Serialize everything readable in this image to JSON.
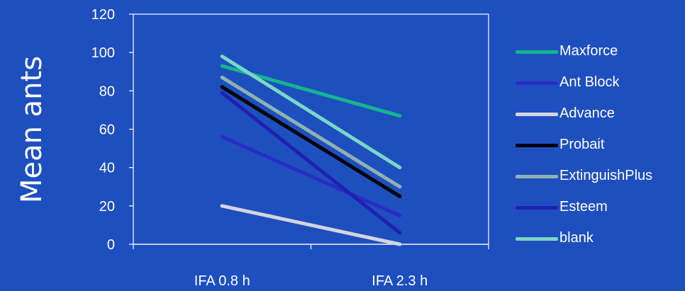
{
  "chart_data": {
    "type": "line",
    "title": "",
    "xlabel": "",
    "ylabel": "Mean ants",
    "categories": [
      "IFA 0.8 h",
      "IFA 2.3 h"
    ],
    "ylim": [
      0,
      120
    ],
    "yticks": [
      "0",
      "20",
      "40",
      "60",
      "80",
      "100",
      "120"
    ],
    "grid": false,
    "legend_position": "right",
    "plot_background": "#1e4fbf",
    "series": [
      {
        "name": "Maxforce",
        "values": [
          93,
          67
        ],
        "color": "#13b58f"
      },
      {
        "name": "Ant Block",
        "values": [
          56,
          15
        ],
        "color": "#2a2cc4"
      },
      {
        "name": "Advance",
        "values": [
          20,
          0
        ],
        "color": "#d2d6dc"
      },
      {
        "name": "Probait",
        "values": [
          82,
          25
        ],
        "color": "#000000"
      },
      {
        "name": "ExtinguishPlus",
        "values": [
          87,
          30
        ],
        "color": "#8fb2b0"
      },
      {
        "name": "Esteem",
        "values": [
          79,
          6
        ],
        "color": "#2020b0"
      },
      {
        "name": "blank",
        "values": [
          98,
          40
        ],
        "color": "#7ad6c6"
      }
    ]
  }
}
